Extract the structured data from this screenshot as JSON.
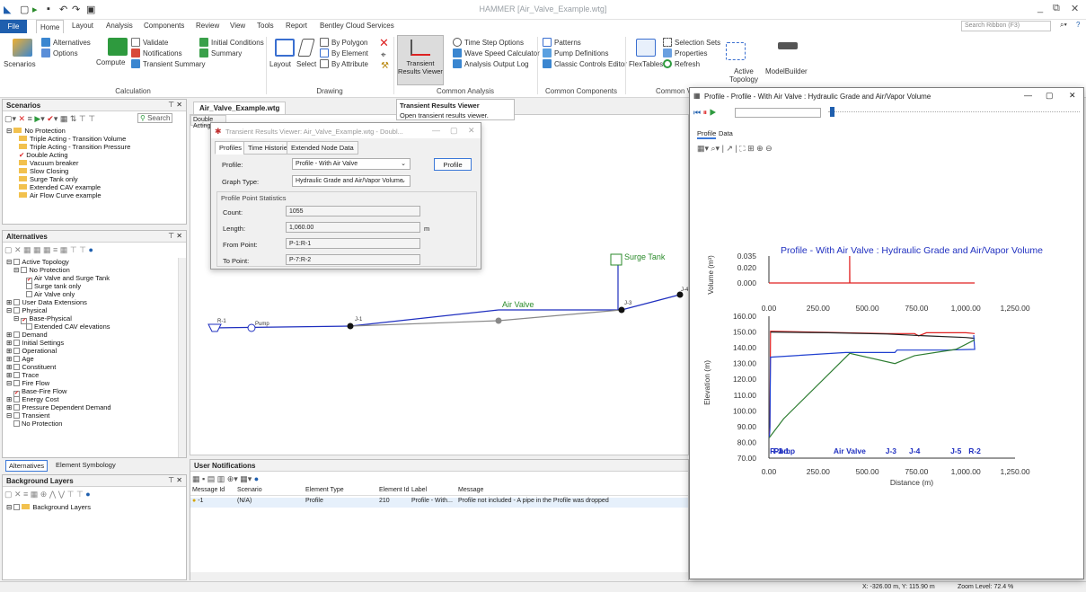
{
  "app": {
    "title": "HAMMER [Air_Valve_Example.wtg]"
  },
  "ribbon_tabs": [
    "File",
    "Home",
    "Layout",
    "Analysis",
    "Components",
    "Review",
    "View",
    "Tools",
    "Report",
    "Bentley Cloud Services"
  ],
  "ribbon_search": "Search Ribbon (F3)",
  "ribbon": {
    "scenarios": "Scenarios",
    "alternatives": "Alternatives",
    "options": "Options",
    "compute": "Compute",
    "validate": "Validate",
    "notifications": "Notifications",
    "transient_summary": "Transient Summary",
    "initial_conditions": "Initial Conditions",
    "summary": "Summary",
    "layout": "Layout",
    "select": "Select",
    "by_polygon": "By Polygon",
    "by_element": "By Element",
    "by_attribute": "By Attribute",
    "transient_results_viewer": "Transient Results Viewer",
    "time_step_options": "Time Step Options",
    "wave_speed_calculator": "Wave Speed Calculator",
    "analysis_output_log": "Analysis Output Log",
    "patterns": "Patterns",
    "pump_definitions": "Pump Definitions",
    "classic_controls_editor": "Classic Controls Editor",
    "flextables": "FlexTables",
    "selection_sets": "Selection Sets",
    "properties": "Properties",
    "refresh": "Refresh",
    "active_topology": "Active Topology",
    "modelbuilder": "ModelBuilder",
    "groups": {
      "calculation": "Calculation",
      "drawing": "Drawing",
      "common_analysis": "Common Analysis",
      "common_components": "Common Components",
      "common_view": "Common Vi"
    }
  },
  "scenarios_panel": {
    "title": "Scenarios",
    "search": "Search",
    "items": [
      "No Protection",
      "Triple Acting - Transition Volume",
      "Triple Acting - Transition Pressure",
      "Double Acting",
      "Vacuum breaker",
      "Slow Closing",
      "Surge Tank only",
      "Extended CAV example",
      "Air Flow Curve example"
    ]
  },
  "alternatives_panel": {
    "title": "Alternatives",
    "items": [
      "Active Topology",
      "No Protection",
      "Air Valve and Surge Tank",
      "Surge tank only",
      "Air Valve only",
      "User Data Extensions",
      "Physical",
      "Base-Physical",
      "Extended CAV elevations",
      "Demand",
      "Initial Settings",
      "Operational",
      "Age",
      "Constituent",
      "Trace",
      "Fire Flow",
      "Base-Fire Flow",
      "Energy Cost",
      "Pressure Dependent Demand",
      "Transient",
      "No Protection"
    ]
  },
  "panel_tabs": [
    "Alternatives",
    "Element Symbology"
  ],
  "background_panel": {
    "title": "Background Layers",
    "items": [
      "Background Layers"
    ]
  },
  "drawing": {
    "tab": "Air_Valve_Example.wtg",
    "tab2": "Double Acting",
    "labels": {
      "surge_tank": "Surge Tank",
      "air_valve": "Air Valve",
      "pump": "Pump",
      "r1": "R-1",
      "j1": "J-1",
      "j3": "J-3",
      "j4": "J-4"
    }
  },
  "tooltip": {
    "title": "Transient Results Viewer",
    "text": "Open transient results viewer."
  },
  "dialog": {
    "title": "Transient Results Viewer: Air_Valve_Example.wtg - Doubl...",
    "tabs": [
      "Profiles",
      "Time Histories",
      "Extended Node Data"
    ],
    "profile_label": "Profile:",
    "profile_value": "Profile - With Air Valve",
    "profile_button": "Profile",
    "graph_type_label": "Graph Type:",
    "graph_type_value": "Hydraulic Grade and Air/Vapor Volume",
    "stats_title": "Profile Point Statistics",
    "count_label": "Count:",
    "count_value": "1055",
    "length_label": "Length:",
    "length_value": "1,060.00",
    "length_unit": "m",
    "from_label": "From Point:",
    "from_value": "P-1:R-1",
    "to_label": "To Point:",
    "to_value": "P-7:R-2"
  },
  "notifications": {
    "title": "User Notifications",
    "columns": [
      "Message Id",
      "Scenario",
      "Element Type",
      "Element Id",
      "Label",
      "Message"
    ],
    "rows": [
      [
        "-1",
        "(N/A)",
        "Profile",
        "210",
        "Profile - With...",
        "Profile not included - A pipe in the Profile was dropped"
      ]
    ]
  },
  "status_bar": {
    "coords": "X: -326.00 m, Y: 115.90 m",
    "zoom": "Zoom Level: 72.4 %"
  },
  "profile_window": {
    "title": "Profile - Profile - With Air Valve : Hydraulic Grade and Air/Vapor Volume",
    "tabs": [
      "Profile",
      "Data"
    ]
  },
  "chart_data": {
    "type": "line",
    "title": "Profile - With Air Valve : Hydraulic Grade and Air/Vapor Volume",
    "volume_ylabel": "Volume (m³)",
    "volume_yticks": [
      "0.035",
      "0.020",
      "0.000"
    ],
    "ylabel": "Elevation (m)",
    "xlabel": "Distance (m)",
    "ylim": [
      70,
      160
    ],
    "volume_ylim": [
      0,
      0.035
    ],
    "xlim": [
      0,
      1250
    ],
    "xticks": [
      "0.00",
      "250.00",
      "500.00",
      "750.00",
      "1,000.00",
      "1,250.00"
    ],
    "yticks": [
      "160.00",
      "150.00",
      "140.00",
      "130.00",
      "120.00",
      "110.00",
      "100.00",
      "90.00",
      "80.00",
      "70.00"
    ],
    "node_labels": [
      {
        "text": "R-1",
        "x": 5
      },
      {
        "text": "Pump",
        "x": 25
      },
      {
        "text": "J-1",
        "x": 75
      },
      {
        "text": "Air Valve",
        "x": 410
      },
      {
        "text": "J-3",
        "x": 620
      },
      {
        "text": "J-4",
        "x": 740
      },
      {
        "text": "J-5",
        "x": 950
      },
      {
        "text": "R-2",
        "x": 1045
      }
    ],
    "series": [
      {
        "color": "#e02020",
        "points": [
          [
            2,
            84
          ],
          [
            5,
            90
          ],
          [
            8,
            150.5
          ],
          [
            600,
            149
          ],
          [
            740,
            149
          ],
          [
            760,
            147.5
          ],
          [
            800,
            149.5
          ],
          [
            1000,
            149.5
          ],
          [
            1045,
            149
          ]
        ]
      },
      {
        "color": "#202020",
        "points": [
          [
            8,
            150
          ],
          [
            300,
            149.5
          ],
          [
            600,
            148.7
          ],
          [
            800,
            147.5
          ],
          [
            1000,
            146.5
          ],
          [
            1045,
            146
          ]
        ]
      },
      {
        "color": "#2040d0",
        "points": [
          [
            2,
            83
          ],
          [
            5,
            88
          ],
          [
            8,
            134
          ],
          [
            390,
            137
          ],
          [
            640,
            137
          ],
          [
            650,
            138.5
          ],
          [
            900,
            138.5
          ],
          [
            1045,
            139
          ],
          [
            1040,
            148
          ]
        ]
      },
      {
        "color": "#2e7d32",
        "points": [
          [
            2,
            83
          ],
          [
            75,
            95
          ],
          [
            410,
            136.5
          ],
          [
            640,
            130
          ],
          [
            740,
            135
          ],
          [
            950,
            139
          ],
          [
            1045,
            145
          ]
        ]
      }
    ],
    "volume_series": [
      {
        "color": "#e02020",
        "points": [
          [
            0,
            0
          ],
          [
            410,
            0
          ],
          [
            410,
            0.035
          ],
          [
            411,
            0
          ],
          [
            1045,
            0
          ]
        ]
      }
    ]
  }
}
